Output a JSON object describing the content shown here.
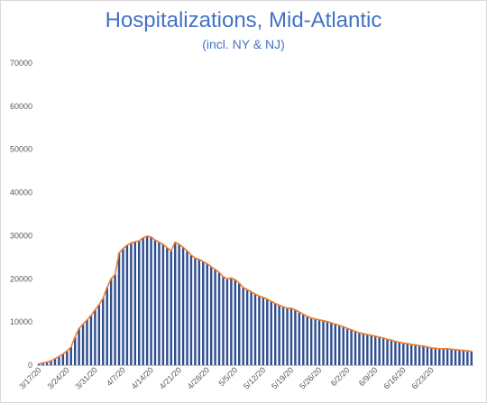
{
  "chart_data": {
    "type": "bar",
    "title": "Hospitalizations, Mid-Atlantic",
    "subtitle": "(incl. NY & NJ)",
    "xlabel": "",
    "ylabel": "",
    "ylim": [
      0,
      70000
    ],
    "y_ticks": [
      0,
      10000,
      20000,
      30000,
      40000,
      50000,
      60000,
      70000
    ],
    "x_ticks": [
      "3/17/20",
      "3/24/20",
      "3/31/20",
      "4/7/20",
      "4/14/20",
      "4/21/20",
      "4/28/20",
      "5/5/20",
      "5/12/20",
      "5/19/20",
      "5/26/20",
      "6/2/20",
      "6/9/20",
      "6/16/20",
      "6/23/20"
    ],
    "start_date": "3/17/20",
    "grid": false,
    "legend": "none",
    "colors": {
      "bar": "#2f4f8f",
      "line": "#ed7d31",
      "title": "#4472c4",
      "axis": "#bfbfbf"
    },
    "series": [
      {
        "type": "bar",
        "values": [
          300,
          500,
          700,
          1000,
          1500,
          2000,
          2600,
          3300,
          4200,
          6500,
          8500,
          9500,
          10500,
          11500,
          12800,
          14000,
          15500,
          18000,
          20000,
          21000,
          26000,
          27000,
          27800,
          28300,
          28600,
          28800,
          29500,
          29900,
          29700,
          29000,
          28500,
          28000,
          27200,
          26500,
          28500,
          28000,
          27300,
          26500,
          25500,
          24800,
          24500,
          24000,
          23500,
          22800,
          22200,
          21500,
          20500,
          20000,
          20200,
          19800,
          19000,
          18000,
          17500,
          17000,
          16500,
          16000,
          15700,
          15300,
          14800,
          14300,
          13900,
          13500,
          13200,
          13200,
          12800,
          12300,
          11800,
          11300,
          10900,
          10700,
          10500,
          10300,
          10100,
          9800,
          9500,
          9200,
          8900,
          8500,
          8200,
          7800,
          7500,
          7300,
          7100,
          6900,
          6700,
          6500,
          6300,
          6000,
          5800,
          5500,
          5300,
          5100,
          5000,
          4800,
          4700,
          4500,
          4400,
          4200,
          4000,
          3900,
          3800,
          3800,
          3800,
          3700,
          3600,
          3500,
          3400,
          3300,
          3200
        ]
      },
      {
        "type": "line",
        "values": [
          300,
          500,
          700,
          1000,
          1500,
          2000,
          2600,
          3300,
          4200,
          6500,
          8500,
          9500,
          10500,
          11500,
          12800,
          14000,
          15500,
          18000,
          20000,
          21000,
          26000,
          27000,
          27800,
          28300,
          28600,
          28800,
          29500,
          29900,
          29700,
          29000,
          28500,
          28000,
          27200,
          26500,
          28500,
          28000,
          27300,
          26500,
          25500,
          24800,
          24500,
          24000,
          23500,
          22800,
          22200,
          21500,
          20500,
          20000,
          20200,
          19800,
          19000,
          18000,
          17500,
          17000,
          16500,
          16000,
          15700,
          15300,
          14800,
          14300,
          13900,
          13500,
          13200,
          13200,
          12800,
          12300,
          11800,
          11300,
          10900,
          10700,
          10500,
          10300,
          10100,
          9800,
          9500,
          9200,
          8900,
          8500,
          8200,
          7800,
          7500,
          7300,
          7100,
          6900,
          6700,
          6500,
          6300,
          6000,
          5800,
          5500,
          5300,
          5100,
          5000,
          4800,
          4700,
          4500,
          4400,
          4200,
          4000,
          3900,
          3800,
          3800,
          3800,
          3700,
          3600,
          3500,
          3400,
          3300,
          3200
        ]
      }
    ]
  }
}
